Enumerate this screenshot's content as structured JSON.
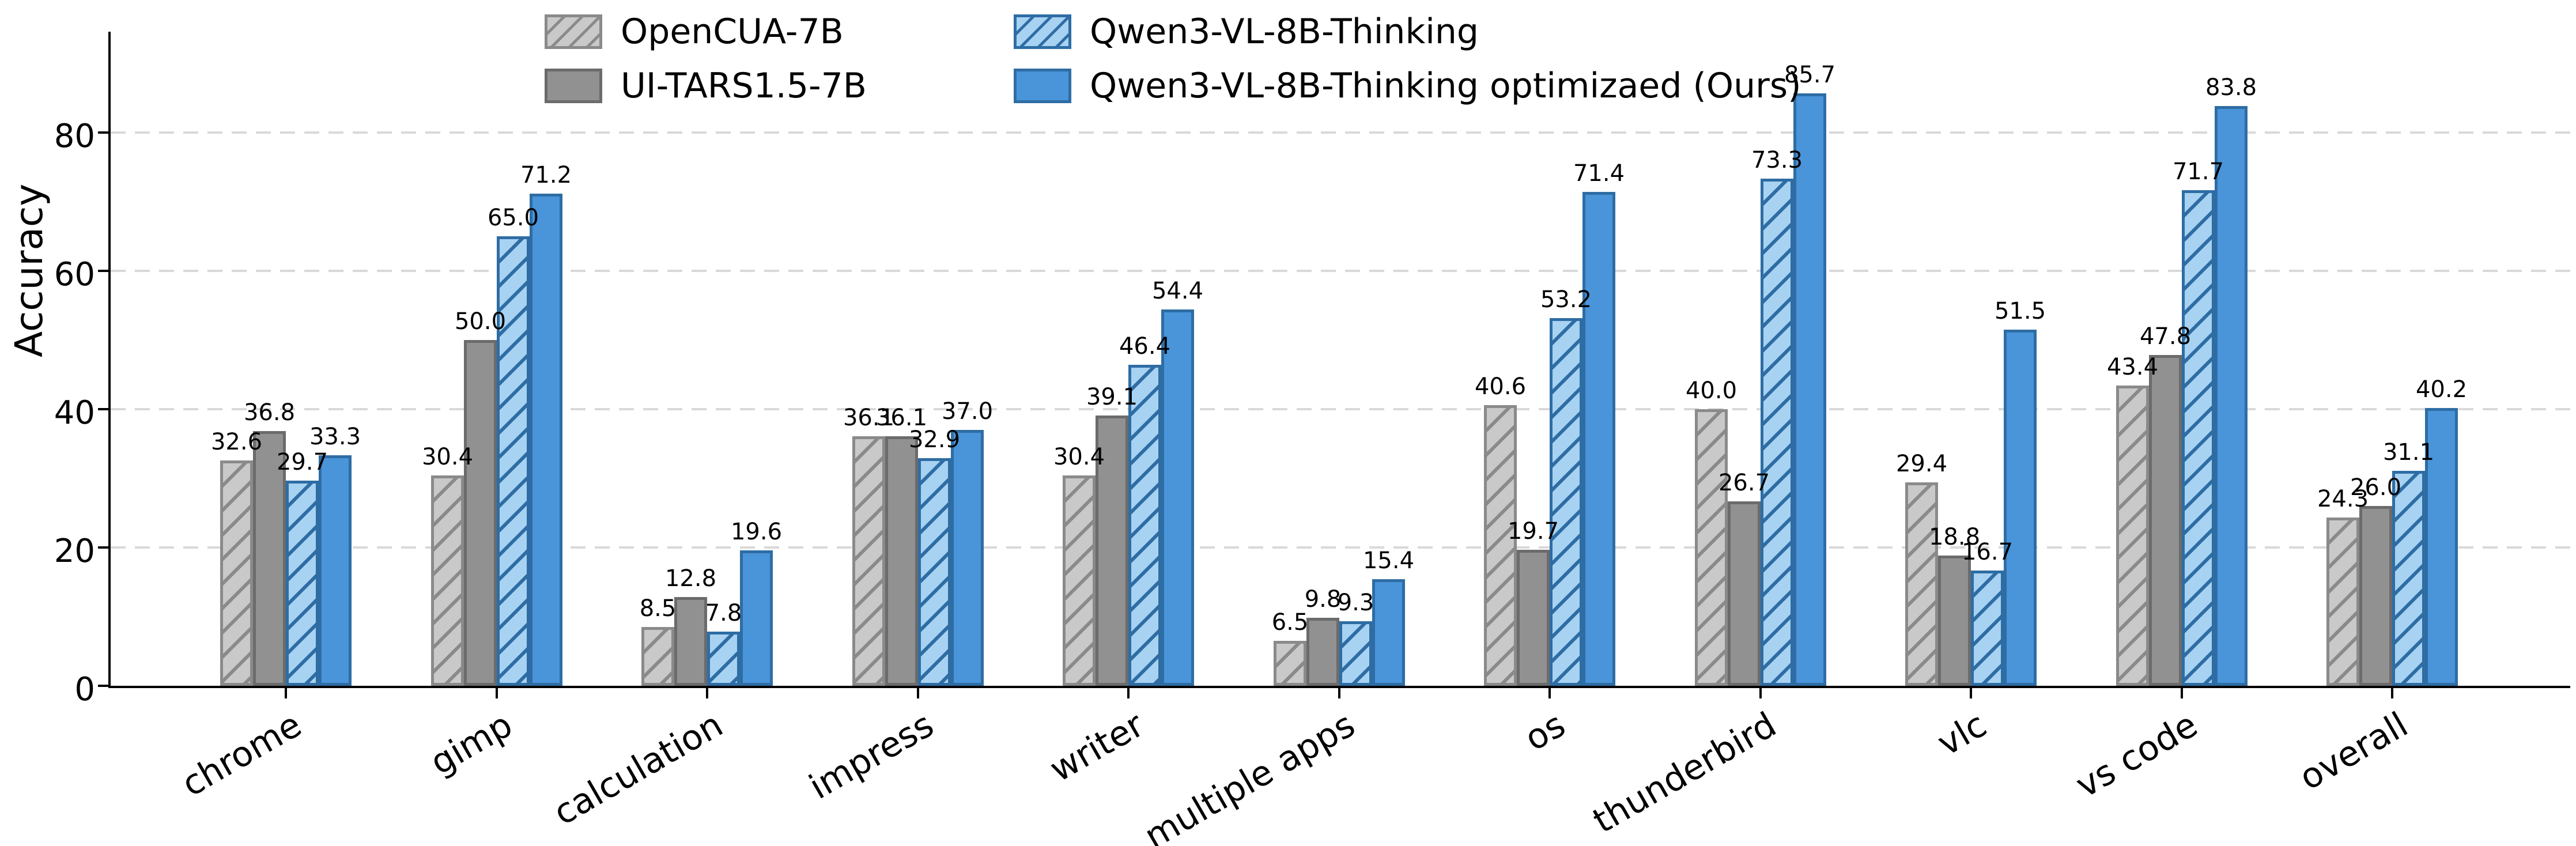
{
  "chart_data": {
    "type": "bar",
    "title": "",
    "xlabel": "",
    "ylabel": "Accuracy",
    "ylim": [
      0,
      94
    ],
    "yticks": [
      0,
      20,
      40,
      60,
      80
    ],
    "grid": "horizontal dashed light-gray lines at y ticks",
    "legend_position": "top, inside figure, two columns, no frame",
    "value_labels": "each bar annotated with its value to one decimal place",
    "categories": [
      "chrome",
      "gimp",
      "calculation",
      "impress",
      "writer",
      "multiple apps",
      "os",
      "thunderbird",
      "vlc",
      "vs code",
      "overall"
    ],
    "series": [
      {
        "name": "OpenCUA-7B",
        "fill": "#c9c9c9",
        "hatch": true,
        "hatch_color": "#8a8a8a",
        "edge": "#8a8a8a",
        "values": [
          32.6,
          30.4,
          8.5,
          36.1,
          30.4,
          6.5,
          40.6,
          40.0,
          29.4,
          43.4,
          24.3
        ]
      },
      {
        "name": "UI-TARS1.5-7B",
        "fill": "#919191",
        "hatch": false,
        "hatch_color": null,
        "edge": "#6b6b6b",
        "values": [
          36.8,
          50.0,
          12.8,
          36.1,
          39.1,
          9.8,
          19.7,
          26.7,
          18.8,
          47.8,
          26.0
        ]
      },
      {
        "name": "Qwen3-VL-8B-Thinking",
        "fill": "#a8d2f2",
        "hatch": true,
        "hatch_color": "#2e6da4",
        "edge": "#2e6da4",
        "values": [
          29.7,
          65.0,
          7.8,
          32.9,
          46.4,
          9.3,
          53.2,
          73.3,
          16.7,
          71.7,
          31.1
        ]
      },
      {
        "name": "Qwen3-VL-8B-Thinking optimizaed (Ours)",
        "fill": "#4a94d9",
        "hatch": false,
        "hatch_color": null,
        "edge": "#2e6da4",
        "values": [
          33.3,
          71.2,
          19.6,
          37.0,
          54.4,
          15.4,
          71.4,
          85.7,
          51.5,
          83.8,
          40.2
        ]
      }
    ]
  },
  "colors": {
    "gridline": "#d9d9d9",
    "axis": "#000000",
    "text": "#000000",
    "background": "#ffffff"
  }
}
